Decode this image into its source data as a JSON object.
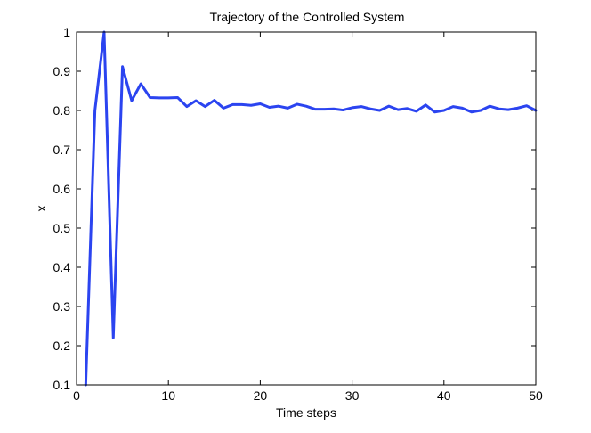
{
  "chart_data": {
    "type": "line",
    "title": "Trajectory of the Controlled System",
    "xlabel": "Time steps",
    "ylabel": "x",
    "xlim": [
      0,
      50
    ],
    "ylim": [
      0.1,
      1
    ],
    "xticks": [
      "0",
      "10",
      "20",
      "30",
      "40",
      "50"
    ],
    "yticks": [
      "0.1",
      "0.2",
      "0.3",
      "0.4",
      "0.5",
      "0.6",
      "0.7",
      "0.8",
      "0.9",
      "1"
    ],
    "grid": false,
    "line_color": "#2b44f0",
    "series": [
      {
        "x": [
          1,
          2,
          3,
          4,
          5,
          6,
          7,
          8,
          9,
          10,
          11,
          12,
          13,
          14,
          15,
          16,
          17,
          18,
          19,
          20,
          21,
          22,
          23,
          24,
          25,
          26,
          27,
          28,
          29,
          30,
          31,
          32,
          33,
          34,
          35,
          36,
          37,
          38,
          39,
          40,
          41,
          42,
          43,
          44,
          45,
          46,
          47,
          48,
          49,
          50
        ],
        "y": [
          0.1,
          0.8,
          1.0,
          0.22,
          0.912,
          0.825,
          0.868,
          0.833,
          0.832,
          0.832,
          0.833,
          0.81,
          0.825,
          0.81,
          0.826,
          0.806,
          0.815,
          0.815,
          0.813,
          0.817,
          0.808,
          0.811,
          0.806,
          0.816,
          0.811,
          0.803,
          0.803,
          0.804,
          0.801,
          0.807,
          0.81,
          0.804,
          0.8,
          0.811,
          0.802,
          0.805,
          0.798,
          0.814,
          0.796,
          0.8,
          0.81,
          0.806,
          0.796,
          0.8,
          0.811,
          0.804,
          0.802,
          0.806,
          0.812,
          0.8
        ]
      }
    ]
  }
}
